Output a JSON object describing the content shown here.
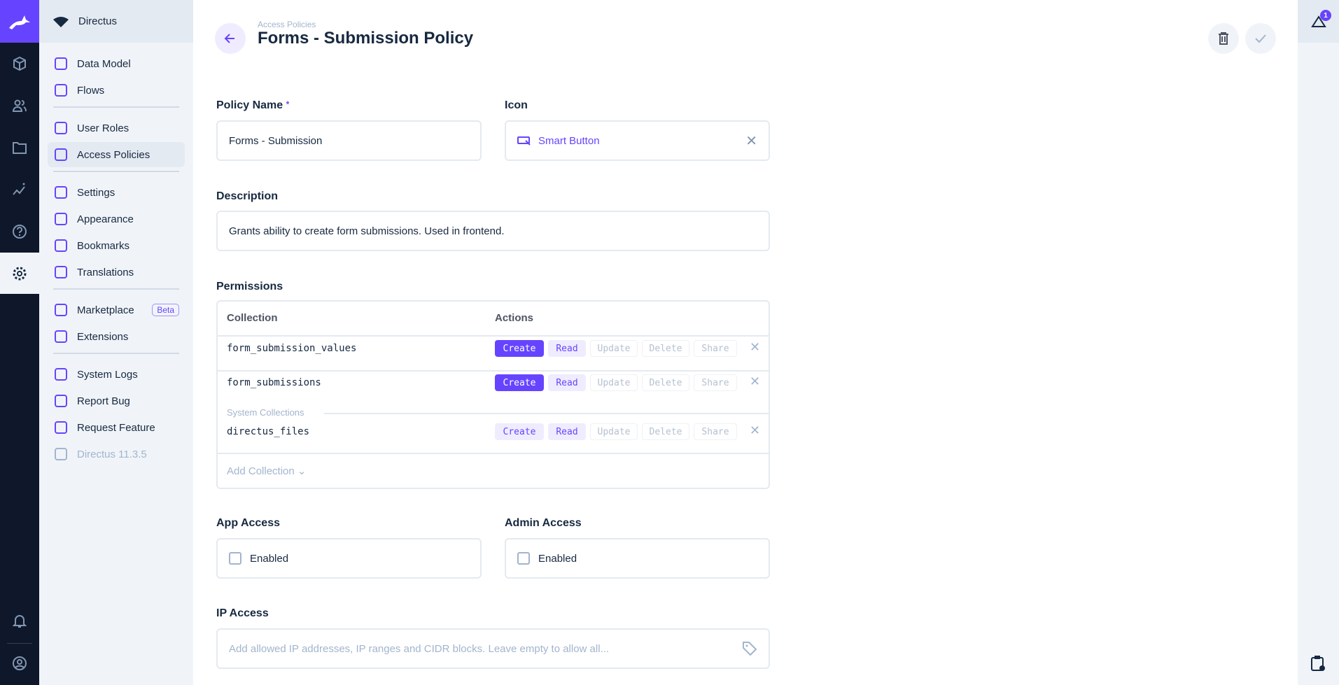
{
  "rail": {
    "icons": [
      "content-icon",
      "users-icon",
      "files-icon",
      "insights-icon",
      "help-icon",
      "settings-icon"
    ],
    "bottom": [
      "notifications-icon",
      "account-icon"
    ]
  },
  "nav": {
    "project": "Directus",
    "items": [
      {
        "label": "Data Model",
        "icon": "database-icon"
      },
      {
        "label": "Flows",
        "icon": "bolt-icon"
      },
      {
        "divider": true
      },
      {
        "label": "User Roles",
        "icon": "group-icon"
      },
      {
        "label": "Access Policies",
        "icon": "shield-icon",
        "active": true
      },
      {
        "divider": true
      },
      {
        "label": "Settings",
        "icon": "tune-icon"
      },
      {
        "label": "Appearance",
        "icon": "palette-icon"
      },
      {
        "label": "Bookmarks",
        "icon": "bookmark-icon"
      },
      {
        "label": "Translations",
        "icon": "translate-icon"
      },
      {
        "divider": true
      },
      {
        "label": "Marketplace",
        "icon": "storefront-icon",
        "badge": "Beta"
      },
      {
        "label": "Extensions",
        "icon": "category-icon"
      },
      {
        "divider": true
      },
      {
        "label": "System Logs",
        "icon": "terminal-icon"
      },
      {
        "label": "Report Bug",
        "icon": "bug-icon"
      },
      {
        "label": "Request Feature",
        "icon": "verified-icon"
      },
      {
        "label": "Directus 11.3.5",
        "icon": "directus-icon",
        "muted": true
      }
    ]
  },
  "header": {
    "breadcrumb": "Access Policies",
    "title": "Forms - Submission Policy"
  },
  "notifications": {
    "count": "1"
  },
  "form": {
    "policy_name": {
      "label": "Policy Name",
      "required": "*",
      "value": "Forms - Submission"
    },
    "icon": {
      "label": "Icon",
      "value": "Smart Button"
    },
    "description": {
      "label": "Description",
      "value": "Grants ability to create form submissions. Used in frontend."
    },
    "permissions": {
      "label": "Permissions",
      "col_collection": "Collection",
      "col_actions": "Actions",
      "system_label": "System Collections",
      "add_label": "Add Collection",
      "actions": [
        "Create",
        "Read",
        "Update",
        "Delete",
        "Share"
      ],
      "rows": [
        {
          "collection": "form_submission_values",
          "states": [
            "all",
            "some",
            "none",
            "none",
            "none"
          ]
        },
        {
          "collection": "form_submissions",
          "states": [
            "all",
            "some",
            "none",
            "none",
            "none"
          ]
        },
        {
          "collection": "directus_files",
          "states": [
            "some",
            "some",
            "none",
            "none",
            "none"
          ],
          "system": true
        }
      ]
    },
    "app_access": {
      "label": "App Access",
      "option": "Enabled",
      "checked": false
    },
    "admin_access": {
      "label": "Admin Access",
      "option": "Enabled",
      "checked": false
    },
    "ip_access": {
      "label": "IP Access",
      "placeholder": "Add allowed IP addresses, IP ranges and CIDR blocks. Leave empty to allow all..."
    }
  },
  "colors": {
    "accent": "#6644ff",
    "rail": "#0f172a",
    "nav": "#f0f4f9"
  }
}
